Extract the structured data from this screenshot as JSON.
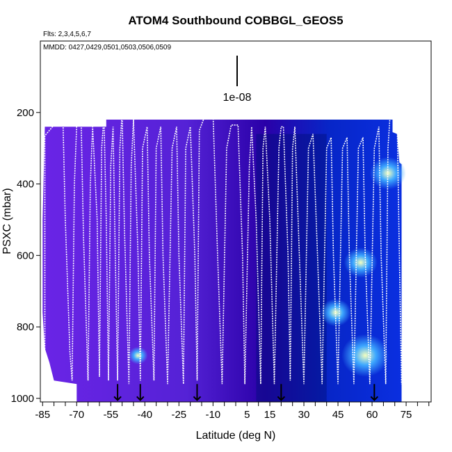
{
  "title": "ATOM4 Southbound COBBGL_GEOS5",
  "flights_note": "Flts: 2,3,4,5,6,7",
  "dates_note": "MMDD: 0427,0429,0501,0503,0506,0509",
  "scale_label": "1e-08",
  "chart_data": {
    "type": "heatmap",
    "title": "ATOM4 Southbound COBBGL_GEOS5",
    "xlabel": "Latitude (deg N)",
    "ylabel": "PSXC (mbar)",
    "x_ticks": [
      "-85",
      "-70",
      "-55",
      "-40",
      "-25",
      "-10",
      "5",
      "15",
      "30",
      "45",
      "60",
      "75"
    ],
    "x_tick_values": [
      -85,
      -70,
      -55,
      -40,
      -25,
      -10,
      5,
      15,
      30,
      45,
      60,
      75
    ],
    "y_ticks": [
      "200",
      "400",
      "600",
      "800",
      "1000"
    ],
    "y_tick_values": [
      200,
      400,
      600,
      800,
      1000
    ],
    "xlim": [
      -86,
      86
    ],
    "ylim": [
      1010,
      0
    ],
    "grid": false,
    "colors": {
      "low": "#2a00a8",
      "mid_low": "#6a24e6",
      "mid": "#0a2fe0",
      "high": "#3ea8ff",
      "peak": "#f4ffc0",
      "flight_track": "#ffffff",
      "arrow": "#000000"
    },
    "arrow_latitudes": [
      -52,
      -42,
      -17,
      20,
      61
    ],
    "flight_profile": [
      [
        -84,
        950
      ],
      [
        -84,
        265
      ],
      [
        -80,
        235
      ],
      [
        -76,
        235
      ],
      [
        -75,
        500
      ],
      [
        -73,
        870
      ],
      [
        -72,
        950
      ],
      [
        -71,
        400
      ],
      [
        -70,
        235
      ],
      [
        -68,
        235
      ],
      [
        -67,
        550
      ],
      [
        -65,
        950
      ],
      [
        -64,
        400
      ],
      [
        -63,
        240
      ],
      [
        -61,
        500
      ],
      [
        -60,
        940
      ],
      [
        -59,
        300
      ],
      [
        -58,
        210
      ],
      [
        -57,
        500
      ],
      [
        -56,
        950
      ],
      [
        -55,
        350
      ],
      [
        -54,
        240
      ],
      [
        -53,
        600
      ],
      [
        -52,
        950
      ],
      [
        -51,
        300
      ],
      [
        -50,
        200
      ],
      [
        -49,
        520
      ],
      [
        -47,
        960
      ],
      [
        -46,
        350
      ],
      [
        -45,
        220
      ],
      [
        -43,
        600
      ],
      [
        -42,
        950
      ],
      [
        -41,
        300
      ],
      [
        -39,
        240
      ],
      [
        -38,
        600
      ],
      [
        -36,
        950
      ],
      [
        -35,
        300
      ],
      [
        -33,
        240
      ],
      [
        -32,
        600
      ],
      [
        -30,
        960
      ],
      [
        -28,
        300
      ],
      [
        -26,
        240
      ],
      [
        -25,
        600
      ],
      [
        -23,
        960
      ],
      [
        -22,
        300
      ],
      [
        -20,
        240
      ],
      [
        -18,
        600
      ],
      [
        -17,
        950
      ],
      [
        -16,
        250
      ],
      [
        -13,
        200
      ],
      [
        -10,
        200
      ],
      [
        -8,
        600
      ],
      [
        -6,
        960
      ],
      [
        -4,
        300
      ],
      [
        -2,
        235
      ],
      [
        1,
        235
      ],
      [
        3,
        600
      ],
      [
        4,
        960
      ],
      [
        6,
        350
      ],
      [
        7,
        240
      ],
      [
        9,
        500
      ],
      [
        11,
        960
      ],
      [
        12,
        300
      ],
      [
        13,
        240
      ],
      [
        15,
        500
      ],
      [
        17,
        960
      ],
      [
        19,
        300
      ],
      [
        20,
        240
      ],
      [
        21,
        240
      ],
      [
        23,
        600
      ],
      [
        24,
        950
      ],
      [
        25,
        300
      ],
      [
        26,
        240
      ],
      [
        28,
        600
      ],
      [
        30,
        960
      ],
      [
        32,
        300
      ],
      [
        34,
        260
      ],
      [
        36,
        600
      ],
      [
        38,
        960
      ],
      [
        40,
        300
      ],
      [
        42,
        270
      ],
      [
        43,
        600
      ],
      [
        45,
        960
      ],
      [
        47,
        300
      ],
      [
        49,
        270
      ],
      [
        50,
        600
      ],
      [
        52,
        960
      ],
      [
        54,
        300
      ],
      [
        56,
        270
      ],
      [
        57,
        600
      ],
      [
        59,
        960
      ],
      [
        61,
        300
      ],
      [
        63,
        240
      ],
      [
        64,
        600
      ],
      [
        66,
        960
      ],
      [
        67,
        300
      ],
      [
        68,
        200
      ],
      [
        71,
        200
      ],
      [
        72,
        600
      ],
      [
        73,
        960
      ]
    ]
  }
}
